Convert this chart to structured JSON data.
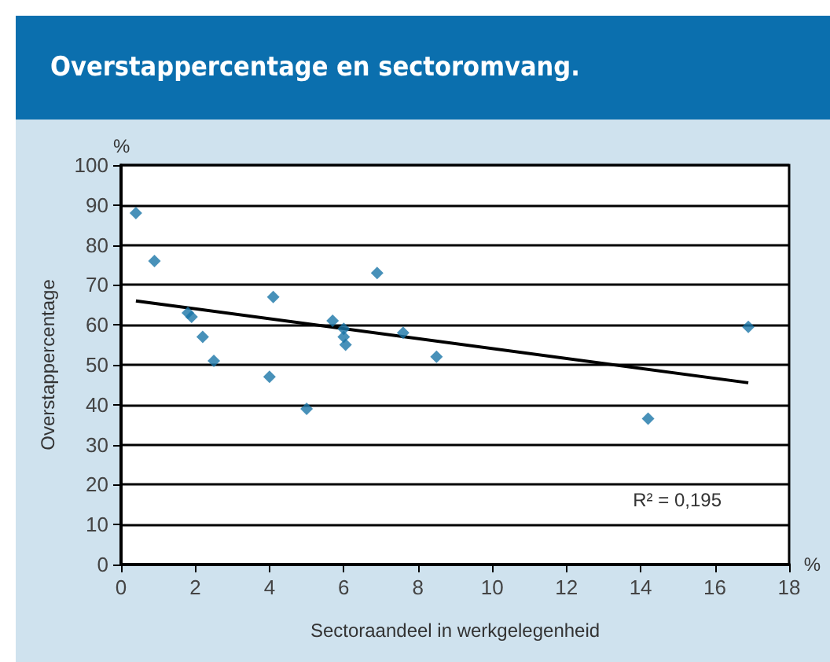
{
  "chart_data": {
    "type": "scatter",
    "title": "Overstappercentage en sectoromvang.",
    "xlabel": "Sectoraandeel in werkgelegenheid",
    "ylabel": "Overstappercentage",
    "x": [
      0.4,
      0.9,
      1.8,
      1.9,
      2.2,
      2.5,
      4.0,
      4.1,
      5.0,
      5.7,
      6.0,
      6.0,
      6.05,
      6.9,
      7.6,
      8.5,
      14.2,
      16.9
    ],
    "series": [
      {
        "color": "#1a75a8",
        "values": [
          88,
          76,
          63,
          62,
          57,
          51,
          47,
          67,
          39,
          61,
          57,
          59,
          55,
          73,
          58,
          52,
          36.5,
          59.5
        ]
      },
      {
        "type": "line",
        "marker": "none",
        "color": "#000000",
        "x": [
          0.4,
          16.9
        ],
        "values": [
          66,
          45.5
        ]
      }
    ],
    "annotations": [
      "R² = 0,195",
      "%",
      "%"
    ],
    "xlim": [
      0,
      18
    ],
    "xticks": [
      0,
      2,
      4,
      6,
      8,
      10,
      12,
      14,
      16,
      18
    ],
    "ylim": [
      0,
      100
    ],
    "yticks": [
      0,
      10,
      20,
      30,
      40,
      50,
      60,
      70,
      80,
      90,
      100
    ],
    "grid": "y",
    "marker": "diamond"
  }
}
